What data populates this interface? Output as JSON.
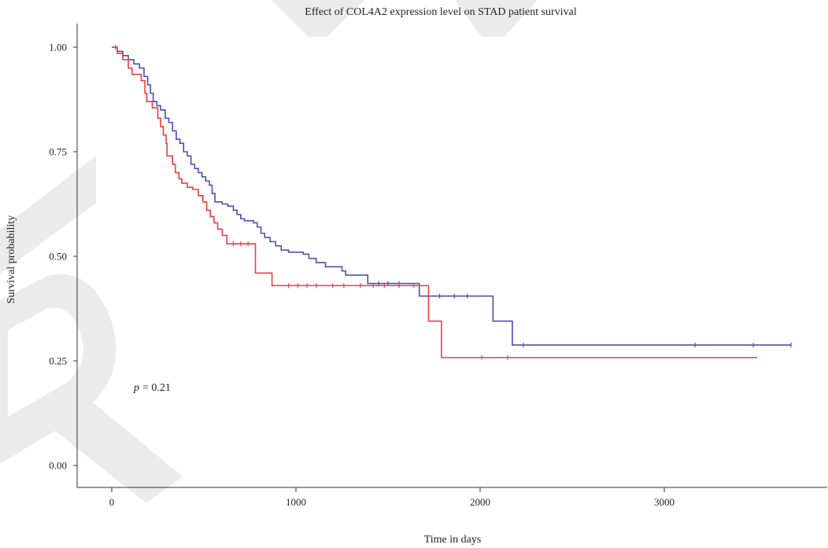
{
  "chart_data": {
    "type": "line",
    "title": "Effect of COL4A2 expression level on STAD patient survival",
    "xlabel": "Time in days",
    "ylabel": "Survival probability",
    "xlim": [
      -188,
      3889
    ],
    "ylim": [
      -0.053,
      1.056
    ],
    "xticks": [
      0,
      1000,
      2000,
      3000
    ],
    "xtick_labels": [
      "0",
      "1000",
      "2000",
      "3000"
    ],
    "yticks": [
      0,
      0.25,
      0.5,
      0.75,
      1
    ],
    "ytick_labels": [
      "0.00",
      "0.25",
      "0.50",
      "0.75",
      "1.00"
    ],
    "grid": false,
    "legend": "none",
    "step": true,
    "series": [
      {
        "color": "#4e4eb2",
        "points": [
          [
            0,
            1.0
          ],
          [
            30,
            0.99
          ],
          [
            60,
            0.98
          ],
          [
            90,
            0.97
          ],
          [
            120,
            0.96
          ],
          [
            150,
            0.95
          ],
          [
            175,
            0.93
          ],
          [
            195,
            0.91
          ],
          [
            210,
            0.89
          ],
          [
            225,
            0.87
          ],
          [
            245,
            0.86
          ],
          [
            265,
            0.85
          ],
          [
            290,
            0.83
          ],
          [
            310,
            0.82
          ],
          [
            330,
            0.8
          ],
          [
            350,
            0.78
          ],
          [
            370,
            0.77
          ],
          [
            390,
            0.75
          ],
          [
            410,
            0.74
          ],
          [
            430,
            0.72
          ],
          [
            450,
            0.71
          ],
          [
            470,
            0.7
          ],
          [
            490,
            0.69
          ],
          [
            510,
            0.68
          ],
          [
            530,
            0.67
          ],
          [
            545,
            0.65
          ],
          [
            560,
            0.63
          ],
          [
            600,
            0.625
          ],
          [
            630,
            0.62
          ],
          [
            660,
            0.61
          ],
          [
            680,
            0.6
          ],
          [
            700,
            0.59
          ],
          [
            720,
            0.585
          ],
          [
            770,
            0.58
          ],
          [
            790,
            0.57
          ],
          [
            810,
            0.555
          ],
          [
            830,
            0.545
          ],
          [
            860,
            0.535
          ],
          [
            890,
            0.525
          ],
          [
            920,
            0.515
          ],
          [
            960,
            0.51
          ],
          [
            1040,
            0.505
          ],
          [
            1070,
            0.495
          ],
          [
            1110,
            0.485
          ],
          [
            1160,
            0.475
          ],
          [
            1250,
            0.465
          ],
          [
            1270,
            0.455
          ],
          [
            1390,
            0.435
          ],
          [
            1670,
            0.405
          ],
          [
            2070,
            0.345
          ],
          [
            2175,
            0.288
          ]
        ],
        "end_time": 3688,
        "censored": [
          1450,
          1500,
          1560,
          1780,
          1860,
          1930,
          2235,
          3167,
          3483,
          3688
        ]
      },
      {
        "color": "#ee3d44",
        "points": [
          [
            0,
            1.0
          ],
          [
            30,
            0.985
          ],
          [
            60,
            0.97
          ],
          [
            90,
            0.95
          ],
          [
            110,
            0.935
          ],
          [
            160,
            0.92
          ],
          [
            180,
            0.89
          ],
          [
            190,
            0.87
          ],
          [
            220,
            0.855
          ],
          [
            250,
            0.83
          ],
          [
            265,
            0.81
          ],
          [
            280,
            0.79
          ],
          [
            295,
            0.77
          ],
          [
            300,
            0.74
          ],
          [
            330,
            0.72
          ],
          [
            345,
            0.7
          ],
          [
            365,
            0.685
          ],
          [
            380,
            0.675
          ],
          [
            410,
            0.665
          ],
          [
            440,
            0.66
          ],
          [
            470,
            0.645
          ],
          [
            495,
            0.63
          ],
          [
            515,
            0.61
          ],
          [
            535,
            0.595
          ],
          [
            555,
            0.58
          ],
          [
            575,
            0.565
          ],
          [
            600,
            0.55
          ],
          [
            625,
            0.53
          ],
          [
            780,
            0.46
          ],
          [
            870,
            0.43
          ],
          [
            1720,
            0.345
          ],
          [
            1790,
            0.258
          ]
        ],
        "end_time": 3504,
        "censored": [
          20,
          660,
          700,
          740,
          960,
          1010,
          1060,
          1110,
          1200,
          1260,
          1350,
          1420,
          1480,
          1560,
          1640,
          2009,
          2150
        ]
      }
    ],
    "annotation": {
      "symbol": "p",
      "text": "= 0.21"
    }
  }
}
